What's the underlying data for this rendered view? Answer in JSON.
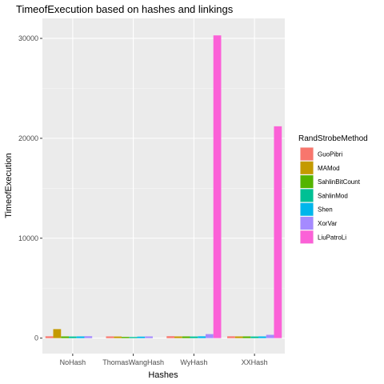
{
  "chart_data": {
    "type": "bar",
    "title": "TimeofExecution based on hashes and linkings",
    "xlabel": "Hashes",
    "ylabel": "TimeofExecution",
    "categories": [
      "NoHash",
      "ThomasWangHash",
      "WyHash",
      "XXHash"
    ],
    "yticks": [
      0,
      10000,
      20000,
      30000
    ],
    "ylim": [
      -1550,
      32000
    ],
    "grid": true,
    "legend": {
      "title": "RandStrobeMethod",
      "placement": "right"
    },
    "series": [
      {
        "name": "GuoPibri",
        "color": "#F8766D",
        "values": [
          180,
          170,
          190,
          180
        ]
      },
      {
        "name": "MAMod",
        "color": "#C49A00",
        "values": [
          900,
          160,
          170,
          170
        ]
      },
      {
        "name": "SahlinBitCount",
        "color": "#53B400",
        "values": [
          170,
          120,
          170,
          170
        ]
      },
      {
        "name": "SahlinMod",
        "color": "#00C094",
        "values": [
          160,
          110,
          160,
          160
        ]
      },
      {
        "name": "Shen",
        "color": "#00B6EB",
        "values": [
          170,
          150,
          180,
          170
        ]
      },
      {
        "name": "XorVar",
        "color": "#A58AFF",
        "values": [
          190,
          170,
          400,
          330
        ]
      },
      {
        "name": "LiuPatroLi",
        "color": "#FB61D7",
        "values": [
          0,
          0,
          30300,
          21200
        ]
      }
    ]
  }
}
